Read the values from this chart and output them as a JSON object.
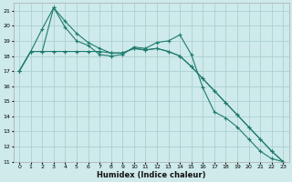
{
  "xlabel": "Humidex (Indice chaleur)",
  "xlim": [
    -0.5,
    23.5
  ],
  "ylim": [
    11,
    21.5
  ],
  "yticks": [
    11,
    12,
    13,
    14,
    15,
    16,
    17,
    18,
    19,
    20,
    21
  ],
  "xticks": [
    0,
    1,
    2,
    3,
    4,
    5,
    6,
    7,
    8,
    9,
    10,
    11,
    12,
    13,
    14,
    15,
    16,
    17,
    18,
    19,
    20,
    21,
    22,
    23
  ],
  "background_color": "#ceeaea",
  "grid_color": "#acd0d0",
  "line_color": "#1e7b6e",
  "line1_x": [
    0,
    1,
    2,
    3,
    4,
    5,
    6,
    7,
    8,
    9,
    10,
    11,
    12,
    13,
    14,
    15,
    16,
    17,
    18,
    19,
    20,
    21,
    22,
    23
  ],
  "line1_y": [
    17.0,
    18.3,
    19.8,
    21.2,
    19.9,
    19.0,
    18.7,
    18.1,
    18.0,
    18.1,
    18.6,
    18.5,
    18.9,
    19.0,
    19.4,
    18.1,
    15.9,
    14.3,
    13.9,
    13.3,
    12.5,
    11.7,
    11.2,
    11.0
  ],
  "line2_x": [
    0,
    1,
    2,
    3,
    4,
    5,
    6,
    7,
    8,
    9,
    10,
    11,
    12,
    13,
    14,
    15,
    16,
    17,
    18,
    19,
    20,
    21,
    22,
    23
  ],
  "line2_y": [
    17.0,
    18.3,
    18.3,
    21.2,
    20.3,
    19.5,
    18.9,
    18.5,
    18.2,
    18.2,
    18.5,
    18.4,
    18.5,
    18.3,
    18.0,
    17.3,
    16.5,
    15.7,
    14.9,
    14.1,
    13.3,
    12.5,
    11.7,
    11.0
  ],
  "line3_x": [
    0,
    1,
    2,
    3,
    4,
    5,
    6,
    7,
    8,
    9,
    10,
    11,
    12,
    13,
    14,
    15,
    16,
    17,
    18,
    19,
    20,
    21,
    22,
    23
  ],
  "line3_y": [
    17.0,
    18.3,
    18.3,
    18.3,
    18.3,
    18.3,
    18.3,
    18.3,
    18.2,
    18.2,
    18.5,
    18.4,
    18.5,
    18.3,
    18.0,
    17.3,
    16.5,
    15.7,
    14.9,
    14.1,
    13.3,
    12.5,
    11.7,
    11.0
  ]
}
